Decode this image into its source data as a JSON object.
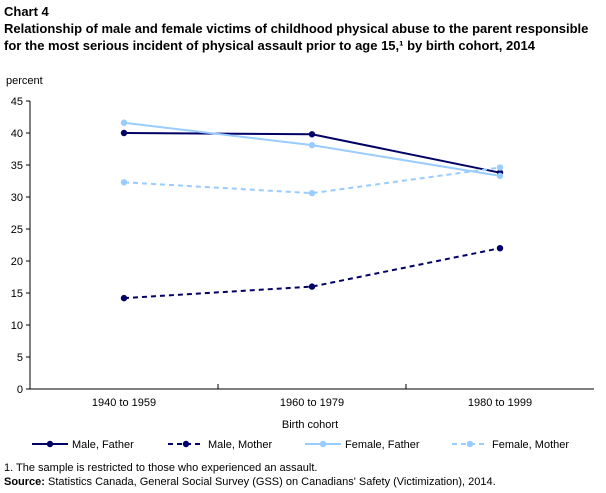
{
  "chart_label": "Chart 4",
  "chart_title": "Relationship  of male and female victims of childhood physical abuse to the parent responsible for the most serious incident of physical assault prior to age 15,¹ by birth cohort, 2014",
  "footnote": "1. The sample is restricted to those who experienced an assault.",
  "source_label": "Source:",
  "source_text": " Statistics Canada, General Social Survey (GSS) on Canadians' Safety (Victimization), 2014.",
  "chart_data": {
    "type": "line",
    "ylabel": "percent",
    "xlabel": "Birth cohort",
    "categories": [
      "1940 to 1959",
      "1960 to 1979",
      "1980 to 1999"
    ],
    "ylim": [
      0,
      45
    ],
    "yticks": [
      0,
      5,
      10,
      15,
      20,
      25,
      30,
      35,
      40,
      45
    ],
    "legend_position": "bottom",
    "grid": false,
    "series": [
      {
        "name": "Male, Father",
        "values": [
          40.0,
          39.8,
          33.8
        ],
        "color": "#000066",
        "dashed": false
      },
      {
        "name": "Male, Mother",
        "values": [
          14.2,
          16.0,
          22.0
        ],
        "color": "#000066",
        "dashed": true
      },
      {
        "name": "Female, Father",
        "values": [
          41.6,
          38.1,
          33.3
        ],
        "color": "#99ccff",
        "dashed": false
      },
      {
        "name": "Female, Mother",
        "values": [
          32.3,
          30.6,
          34.6
        ],
        "color": "#99ccff",
        "dashed": true
      }
    ]
  }
}
